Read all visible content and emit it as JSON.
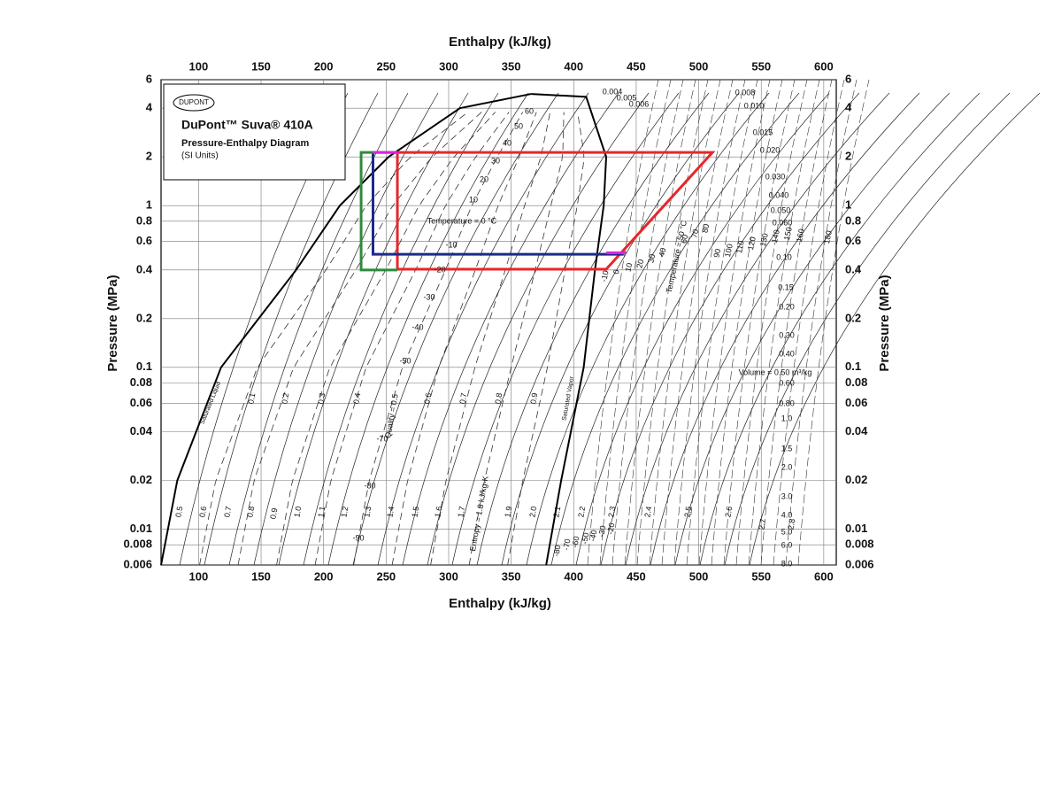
{
  "chart_data": {
    "type": "line",
    "xlabel": "Enthalpy  (kJ/kg)",
    "ylabel": "Pressure  (MPa)",
    "logo": "DUPONT",
    "brand": "DuPont™ Suva® 410A",
    "subtitle": "Pressure-Enthalpy Diagram",
    "units_note": "(SI Units)",
    "xlim": [
      70,
      610
    ],
    "ylim": [
      0.006,
      6
    ],
    "log_y": true,
    "grid": true,
    "xticks": [
      100,
      150,
      200,
      250,
      300,
      350,
      400,
      450,
      500,
      550,
      600
    ],
    "yticks": [
      0.006,
      0.008,
      0.01,
      0.02,
      0.04,
      0.06,
      0.08,
      0.1,
      0.2,
      0.4,
      0.6,
      0.8,
      1,
      2,
      4,
      6
    ],
    "series": [
      {
        "name": "Saturated Liquid",
        "color": "#000000",
        "x": [
          70,
          83,
          118,
          178,
          213,
          252,
          309,
          366
        ],
        "values": [
          0.006,
          0.02,
          0.1,
          0.4,
          1,
          2,
          4,
          4.9
        ]
      },
      {
        "name": "Saturated Vapor",
        "color": "#000000",
        "x": [
          366,
          410,
          426,
          424,
          417,
          408,
          390,
          378
        ],
        "values": [
          4.9,
          4.7,
          2,
          1,
          0.4,
          0.1,
          0.02,
          0.006
        ]
      },
      {
        "color": "#e8262b",
        "x": [
          259,
          511,
          426,
          259,
          259
        ],
        "values": [
          2.13,
          2.13,
          0.404,
          0.404,
          2.13
        ]
      },
      {
        "color": "#1c2a8c",
        "x": [
          239.5,
          239.5,
          440
        ],
        "values": [
          2.13,
          0.5,
          0.5
        ]
      },
      {
        "color": "#2e8b3e",
        "x": [
          259,
          230,
          230,
          259
        ],
        "values": [
          2.13,
          2.13,
          0.4,
          0.4
        ]
      },
      {
        "color": "#e020e0",
        "x": [
          239.5,
          260
        ],
        "values": [
          2.13,
          2.13
        ]
      },
      {
        "color": "#e020e0",
        "x": [
          426,
          442
        ],
        "values": [
          0.51,
          0.51
        ]
      }
    ],
    "quality_labels": [
      "0.1",
      "0.2",
      "0.3",
      "0.4",
      "Quality = 0.5",
      "0.6",
      "0.7",
      "0.8",
      "0.9"
    ],
    "saturation_temperatures": [
      "60",
      "50",
      "40",
      "30",
      "20",
      "10",
      "Temperature = 0 °C",
      "-10",
      "-20",
      "-30",
      "-40",
      "-50",
      "-70",
      "-80",
      "-90"
    ],
    "entropy_labels": [
      "0.5",
      "0.6",
      "0.7",
      "0.8",
      "0.9",
      "1.0",
      "1.1",
      "1.2",
      "1.3",
      "1.4",
      "1.5",
      "1.6",
      "1.7",
      "Entropy = 1.8 kJ/kg-K",
      "1.9",
      "2.0",
      "2.1",
      "2.2",
      "2.3",
      "2.4",
      "2.5",
      "2.6",
      "2.7",
      "2.8"
    ],
    "superheat_temperatures": [
      "-10",
      "0",
      "10",
      "20",
      "30",
      "40",
      "Temperature = 50 °C",
      "60",
      "70",
      "80",
      "90",
      "100",
      "110",
      "120",
      "130",
      "140",
      "150",
      "160",
      "180"
    ],
    "volume_labels": [
      "0.004",
      "0.005",
      "0.006",
      "0.008",
      "0.010",
      "0.015",
      "0.020",
      "0.030",
      "0.040",
      "0.050",
      "0.060",
      "0.10",
      "0.15",
      "0.20",
      "0.30",
      "0.40",
      "Volume = 0.50 m³/kg",
      "0.60",
      "0.80",
      "1.0",
      "1.5",
      "2.0",
      "3.0",
      "4.0",
      "5.0",
      "6.0",
      "8.0"
    ],
    "low_temperatures": [
      "-80",
      "-70",
      "-60",
      "-50",
      "-40",
      "-30",
      "-20"
    ]
  }
}
